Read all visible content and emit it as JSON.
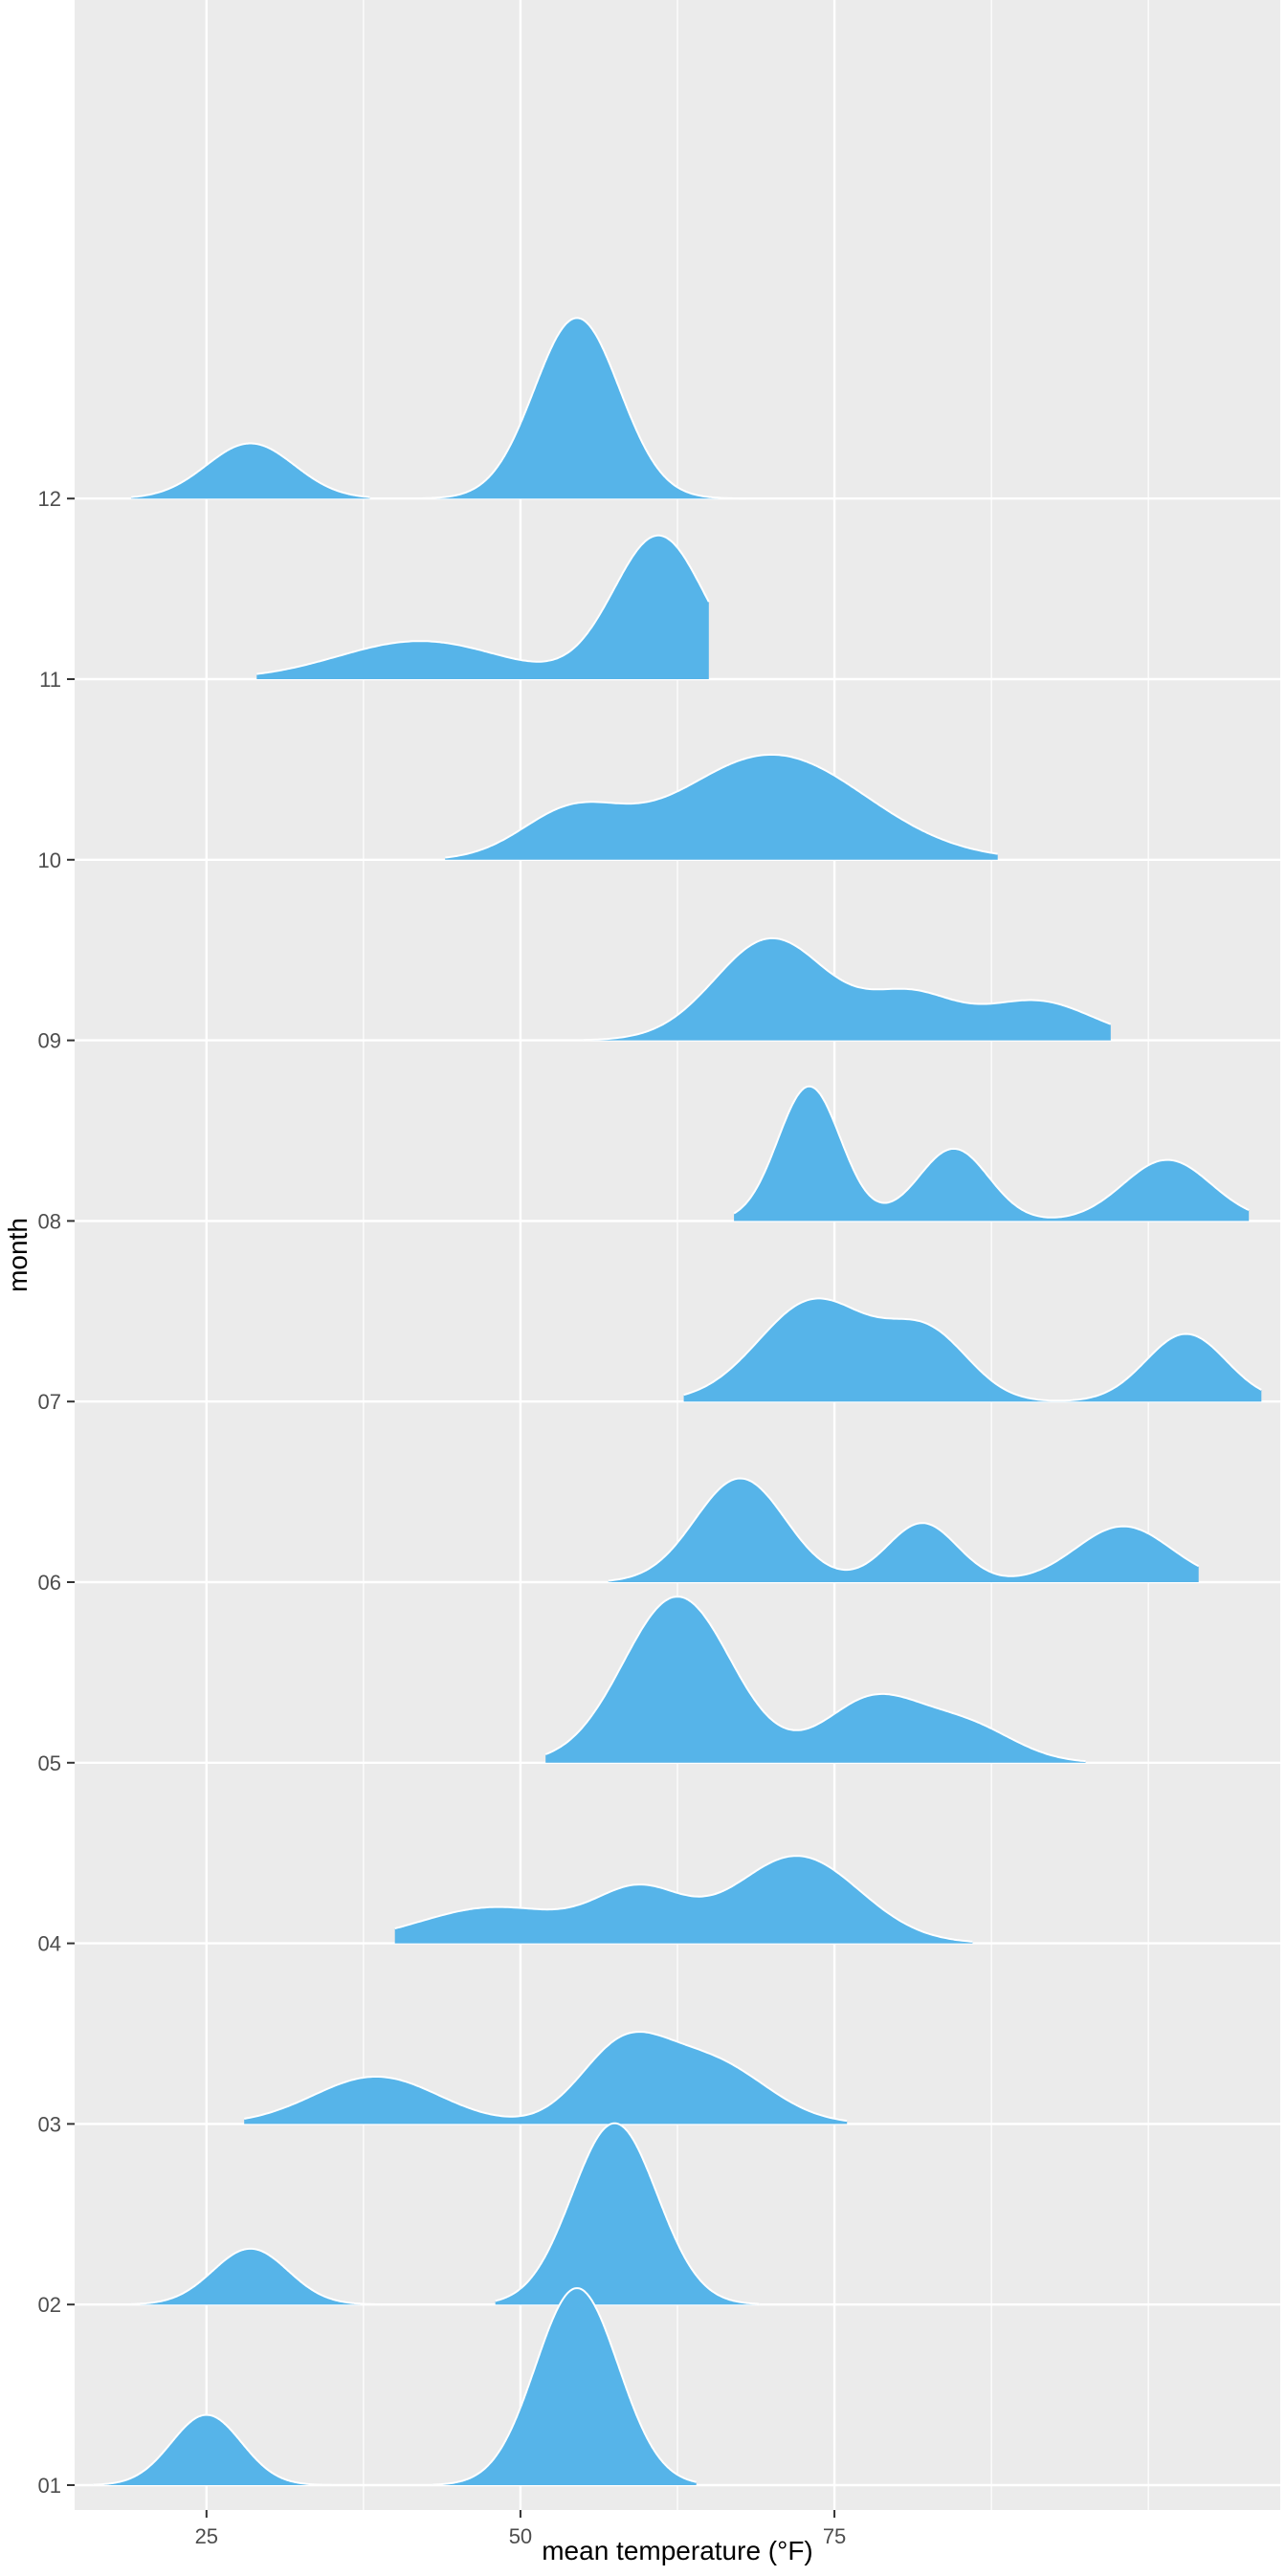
{
  "chart_data": {
    "type": "ridgeline",
    "title": "",
    "xlabel": "mean temperature (°F)",
    "ylabel": "month",
    "xlim": [
      14.5,
      110.5
    ],
    "x_ticks": [
      25,
      50,
      75
    ],
    "x_tick_labels": [
      "25",
      "50",
      "75"
    ],
    "x_minor_grid": [
      37.5,
      62.5,
      87.5,
      100
    ],
    "categories": [
      "01",
      "02",
      "03",
      "04",
      "05",
      "06",
      "07",
      "08",
      "09",
      "10",
      "11",
      "12"
    ],
    "ridge_scale": 2.75,
    "grid": true,
    "legend": "none",
    "series": [
      {
        "category": "01",
        "range": [
          16,
          35
        ],
        "modes": [
          {
            "mu": 25,
            "sd": 2.8,
            "h": 1.07
          }
        ]
      },
      {
        "category": "01",
        "range": [
          43,
          64
        ],
        "modes": [
          {
            "mu": 54.5,
            "sd": 3.3,
            "h": 3.0
          }
        ]
      },
      {
        "category": "02",
        "range": [
          19,
          39
        ],
        "modes": [
          {
            "mu": 28.5,
            "sd": 3.0,
            "h": 0.85
          }
        ]
      },
      {
        "category": "02",
        "range": [
          48,
          69
        ],
        "modes": [
          {
            "mu": 57.5,
            "sd": 3.4,
            "h": 2.76
          }
        ]
      },
      {
        "category": "03",
        "range": [
          28,
          76
        ],
        "modes": [
          {
            "mu": 38.5,
            "sd": 5.0,
            "h": 0.72
          },
          {
            "mu": 58,
            "sd": 3.4,
            "h": 1.05
          },
          {
            "mu": 65,
            "sd": 4.5,
            "h": 0.95
          }
        ]
      },
      {
        "category": "04",
        "range": [
          40,
          86
        ],
        "modes": [
          {
            "mu": 48,
            "sd": 6,
            "h": 0.55
          },
          {
            "mu": 59.5,
            "sd": 3.5,
            "h": 0.75
          },
          {
            "mu": 72,
            "sd": 5,
            "h": 1.33
          }
        ]
      },
      {
        "category": "05",
        "range": [
          52,
          95
        ],
        "modes": [
          {
            "mu": 62.5,
            "sd": 4.3,
            "h": 2.53
          },
          {
            "mu": 78,
            "sd": 3.8,
            "h": 0.95
          },
          {
            "mu": 85.5,
            "sd": 3.8,
            "h": 0.55
          }
        ]
      },
      {
        "category": "06",
        "range": [
          57,
          104
        ],
        "modes": [
          {
            "mu": 67.5,
            "sd": 3.6,
            "h": 1.58
          },
          {
            "mu": 82,
            "sd": 2.8,
            "h": 0.9
          },
          {
            "mu": 98,
            "sd": 3.8,
            "h": 0.85
          }
        ]
      },
      {
        "category": "07",
        "range": [
          63,
          109
        ],
        "modes": [
          {
            "mu": 73.5,
            "sd": 4.5,
            "h": 1.55
          },
          {
            "mu": 81.5,
            "sd": 3.0,
            "h": 0.6
          },
          {
            "mu": 84,
            "sd": 3.0,
            "h": 0.45
          },
          {
            "mu": 103,
            "sd": 3.2,
            "h": 1.03
          }
        ]
      },
      {
        "category": "08",
        "range": [
          67,
          108
        ],
        "modes": [
          {
            "mu": 73,
            "sd": 2.5,
            "h": 2.05
          },
          {
            "mu": 84.5,
            "sd": 2.8,
            "h": 1.1
          },
          {
            "mu": 101.5,
            "sd": 3.5,
            "h": 0.93
          }
        ]
      },
      {
        "category": "09",
        "range": [
          55,
          97
        ],
        "modes": [
          {
            "mu": 70,
            "sd": 4.5,
            "h": 1.55
          },
          {
            "mu": 81,
            "sd": 3.5,
            "h": 0.65
          },
          {
            "mu": 91,
            "sd": 4.5,
            "h": 0.6
          }
        ]
      },
      {
        "category": "10",
        "range": [
          44,
          88
        ],
        "modes": [
          {
            "mu": 54,
            "sd": 4.0,
            "h": 0.68
          },
          {
            "mu": 70,
            "sd": 7.5,
            "h": 1.6
          }
        ]
      },
      {
        "category": "11",
        "range": [
          29,
          65
        ],
        "modes": [
          {
            "mu": 42,
            "sd": 6.5,
            "h": 0.58
          },
          {
            "mu": 61,
            "sd": 3.6,
            "h": 2.18
          }
        ]
      },
      {
        "category": "12",
        "range": [
          19,
          38
        ],
        "modes": [
          {
            "mu": 28.5,
            "sd": 3.5,
            "h": 0.84
          }
        ]
      },
      {
        "category": "12",
        "range": [
          42,
          68
        ],
        "modes": [
          {
            "mu": 54.5,
            "sd": 3.4,
            "h": 2.75
          }
        ]
      }
    ],
    "colors": {
      "fill": "#56B4E9",
      "outline": "#ffffff",
      "panel": "#EBEBEB",
      "grid": "#ffffff"
    }
  }
}
